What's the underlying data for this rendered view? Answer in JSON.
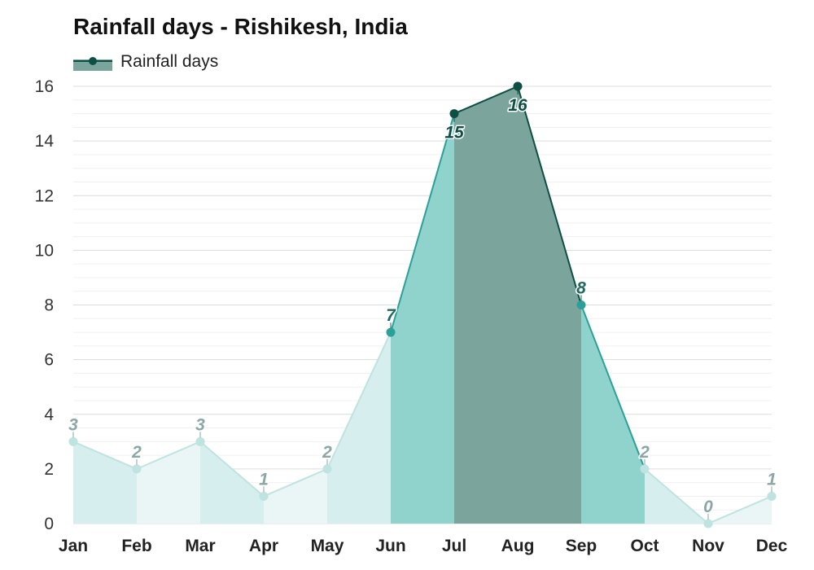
{
  "chart_data": {
    "type": "area",
    "title": "Rainfall days - Rishikesh, India",
    "categories": [
      "Jan",
      "Feb",
      "Mar",
      "Apr",
      "May",
      "Jun",
      "Jul",
      "Aug",
      "Sep",
      "Oct",
      "Nov",
      "Dec"
    ],
    "series": [
      {
        "name": "Rainfall days",
        "values": [
          3,
          2,
          3,
          1,
          2,
          7,
          15,
          16,
          8,
          2,
          0,
          1
        ]
      }
    ],
    "ylim": [
      0,
      16
    ],
    "yticks": [
      "0",
      "2",
      "4",
      "6",
      "8",
      "10",
      "12",
      "14",
      "16"
    ],
    "data_labels": [
      "3",
      "2",
      "3",
      "1",
      "2",
      "7",
      "15",
      "16",
      "8",
      "2",
      "0",
      "1"
    ],
    "grid": true,
    "legend_position": "top-left",
    "colors": {
      "very_light": "#eaf6f6",
      "light": "#d6eeee",
      "medium": "#8fd3cc",
      "dark": "#7ba59c",
      "line_light": "#bfe3e1",
      "line_medium": "#2aa198",
      "line_dark": "#0d4f45",
      "label_light": "#8aa6a6",
      "label_medium": "#1f6a60",
      "label_dark": "#0d4f45",
      "legend_swatch": "#7ba59c"
    }
  }
}
